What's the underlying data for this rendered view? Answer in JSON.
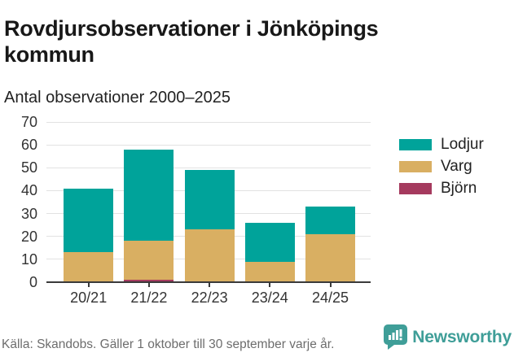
{
  "header": {
    "title": "Rovdjursobservationer i Jönköpings kommun",
    "subtitle": "Antal observationer 2000–2025"
  },
  "chart_data": {
    "type": "bar",
    "stacked": true,
    "title": "Rovdjursobservationer i Jönköpings kommun",
    "subtitle": "Antal observationer 2000–2025",
    "categories": [
      "20/21",
      "21/22",
      "22/23",
      "23/24",
      "24/25"
    ],
    "series": [
      {
        "name": "Lodjur",
        "color": "#00a39a",
        "values": [
          28,
          40,
          26,
          17,
          12
        ]
      },
      {
        "name": "Varg",
        "color": "#d9af62",
        "values": [
          13,
          17,
          23,
          9,
          21
        ]
      },
      {
        "name": "Björn",
        "color": "#a53a5e",
        "values": [
          0,
          1,
          0,
          0,
          0
        ]
      }
    ],
    "stack_order_bottom_to_top": [
      "Björn",
      "Varg",
      "Lodjur"
    ],
    "totals": [
      41,
      58,
      49,
      26,
      33
    ],
    "ylabel": "",
    "xlabel": "",
    "ylim": [
      0,
      70
    ],
    "yticks": [
      0,
      10,
      20,
      30,
      40,
      50,
      60,
      70
    ],
    "grid": "horizontal-only",
    "legend_position": "right"
  },
  "footer": {
    "source": "Källa: Skandobs. Gäller 1 oktober till 30 september varje år.",
    "brand": "Newsworthy"
  },
  "colors": {
    "lodjur_teal": "#00a39a",
    "varg_gold": "#d9af62",
    "bjorn_maroon": "#a53a5e",
    "brand_teal": "#3f9e98",
    "gridline": "#e2e2e2",
    "axis": "#3a3a3a",
    "text_dark": "#181818",
    "text_muted": "#6d6d6d"
  }
}
